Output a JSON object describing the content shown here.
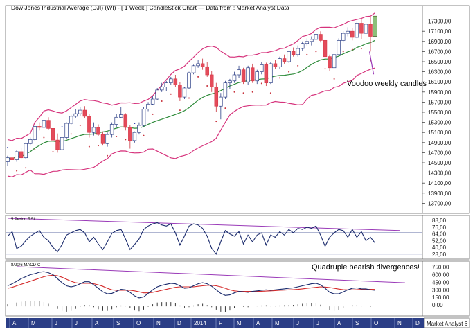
{
  "chart_data": [
    {
      "type": "candlestick",
      "title": "Dow Jones Industrial Average (DJI) (WI) - [ 1 Week ] CandleStick Chart — Data from : Market Analyst Data",
      "annotation": "Voodoo weekly candles",
      "ylim": [
        13500,
        17500
      ],
      "y_ticks": [
        "17300,00",
        "17100,00",
        "16900,00",
        "16700,00",
        "16500,00",
        "16300,00",
        "16100,00",
        "15900,00",
        "15700,00",
        "15500,00",
        "15300,00",
        "15100,00",
        "14900,00",
        "14700,00",
        "14500,00",
        "14300,00",
        "14100,00",
        "13900,00",
        "13700,00"
      ],
      "candles": [
        {
          "o": 14520,
          "h": 14640,
          "l": 14440,
          "c": 14600
        },
        {
          "o": 14600,
          "h": 14700,
          "l": 14500,
          "c": 14560
        },
        {
          "o": 14560,
          "h": 14760,
          "l": 14520,
          "c": 14720
        },
        {
          "o": 14720,
          "h": 14800,
          "l": 14560,
          "c": 14600
        },
        {
          "o": 14600,
          "h": 14900,
          "l": 14580,
          "c": 14880
        },
        {
          "o": 14880,
          "h": 15000,
          "l": 14840,
          "c": 14960
        },
        {
          "o": 14960,
          "h": 15260,
          "l": 14940,
          "c": 15220
        },
        {
          "o": 15220,
          "h": 15300,
          "l": 15140,
          "c": 15200
        },
        {
          "o": 15200,
          "h": 15380,
          "l": 15180,
          "c": 15340
        },
        {
          "o": 15340,
          "h": 15400,
          "l": 15160,
          "c": 15180
        },
        {
          "o": 15180,
          "h": 15250,
          "l": 14900,
          "c": 14950
        },
        {
          "o": 14950,
          "h": 15080,
          "l": 14700,
          "c": 14760
        },
        {
          "o": 14760,
          "h": 15050,
          "l": 14720,
          "c": 15000
        },
        {
          "o": 15000,
          "h": 15300,
          "l": 14980,
          "c": 15280
        },
        {
          "o": 15280,
          "h": 15450,
          "l": 15250,
          "c": 15420
        },
        {
          "o": 15420,
          "h": 15560,
          "l": 15380,
          "c": 15470
        },
        {
          "o": 15470,
          "h": 15600,
          "l": 15420,
          "c": 15540
        },
        {
          "o": 15540,
          "h": 15620,
          "l": 15380,
          "c": 15420
        },
        {
          "o": 15420,
          "h": 15460,
          "l": 15000,
          "c": 15100
        },
        {
          "o": 15100,
          "h": 15300,
          "l": 15040,
          "c": 15200
        },
        {
          "o": 15200,
          "h": 15260,
          "l": 15020,
          "c": 15060
        },
        {
          "o": 15060,
          "h": 15120,
          "l": 14840,
          "c": 14880
        },
        {
          "o": 14880,
          "h": 15100,
          "l": 14820,
          "c": 15060
        },
        {
          "o": 15060,
          "h": 15300,
          "l": 15000,
          "c": 15260
        },
        {
          "o": 15260,
          "h": 15460,
          "l": 15200,
          "c": 15400
        },
        {
          "o": 15400,
          "h": 15600,
          "l": 15380,
          "c": 15450
        },
        {
          "o": 15450,
          "h": 15480,
          "l": 15140,
          "c": 15200
        },
        {
          "o": 15200,
          "h": 15240,
          "l": 14780,
          "c": 14940
        },
        {
          "o": 14940,
          "h": 15120,
          "l": 14900,
          "c": 15100
        },
        {
          "o": 15100,
          "h": 15300,
          "l": 15060,
          "c": 15240
        },
        {
          "o": 15240,
          "h": 15600,
          "l": 15220,
          "c": 15560
        },
        {
          "o": 15560,
          "h": 15700,
          "l": 15520,
          "c": 15660
        },
        {
          "o": 15660,
          "h": 15820,
          "l": 15640,
          "c": 15760
        },
        {
          "o": 15760,
          "h": 15980,
          "l": 15740,
          "c": 15940
        },
        {
          "o": 15940,
          "h": 16080,
          "l": 15900,
          "c": 16000
        },
        {
          "o": 16000,
          "h": 16120,
          "l": 15920,
          "c": 16080
        },
        {
          "o": 16080,
          "h": 16200,
          "l": 16040,
          "c": 16160
        },
        {
          "o": 16160,
          "h": 16240,
          "l": 16000,
          "c": 16040
        },
        {
          "o": 16040,
          "h": 16100,
          "l": 15720,
          "c": 15800
        },
        {
          "o": 15800,
          "h": 16000,
          "l": 15760,
          "c": 15980
        },
        {
          "o": 15980,
          "h": 16300,
          "l": 15960,
          "c": 16280
        },
        {
          "o": 16280,
          "h": 16440,
          "l": 16250,
          "c": 16420
        },
        {
          "o": 16420,
          "h": 16530,
          "l": 16380,
          "c": 16460
        },
        {
          "o": 16460,
          "h": 16560,
          "l": 16340,
          "c": 16400
        },
        {
          "o": 16400,
          "h": 16500,
          "l": 16200,
          "c": 16240
        },
        {
          "o": 16240,
          "h": 16320,
          "l": 15900,
          "c": 16000
        },
        {
          "o": 16000,
          "h": 16080,
          "l": 15500,
          "c": 15620
        },
        {
          "o": 15620,
          "h": 15880,
          "l": 15360,
          "c": 15800
        },
        {
          "o": 15800,
          "h": 16120,
          "l": 15760,
          "c": 16080
        },
        {
          "o": 16080,
          "h": 16160,
          "l": 15960,
          "c": 16120
        },
        {
          "o": 16120,
          "h": 16300,
          "l": 16080,
          "c": 16240
        },
        {
          "o": 16240,
          "h": 16420,
          "l": 16180,
          "c": 16340
        },
        {
          "o": 16340,
          "h": 16380,
          "l": 16060,
          "c": 16100
        },
        {
          "o": 16100,
          "h": 16420,
          "l": 16040,
          "c": 16380
        },
        {
          "o": 16380,
          "h": 16460,
          "l": 16080,
          "c": 16120
        },
        {
          "o": 16120,
          "h": 16340,
          "l": 16060,
          "c": 16300
        },
        {
          "o": 16300,
          "h": 16500,
          "l": 16250,
          "c": 16440
        },
        {
          "o": 16440,
          "h": 16480,
          "l": 16020,
          "c": 16080
        },
        {
          "o": 16080,
          "h": 16500,
          "l": 16060,
          "c": 16460
        },
        {
          "o": 16460,
          "h": 16540,
          "l": 16360,
          "c": 16400
        },
        {
          "o": 16400,
          "h": 16600,
          "l": 16360,
          "c": 16560
        },
        {
          "o": 16560,
          "h": 16640,
          "l": 16460,
          "c": 16500
        },
        {
          "o": 16500,
          "h": 16720,
          "l": 16480,
          "c": 16700
        },
        {
          "o": 16700,
          "h": 16780,
          "l": 16600,
          "c": 16640
        },
        {
          "o": 16640,
          "h": 16820,
          "l": 16600,
          "c": 16760
        },
        {
          "o": 16760,
          "h": 16900,
          "l": 16720,
          "c": 16860
        },
        {
          "o": 16860,
          "h": 16960,
          "l": 16820,
          "c": 16900
        },
        {
          "o": 16900,
          "h": 17000,
          "l": 16820,
          "c": 16940
        },
        {
          "o": 16940,
          "h": 17080,
          "l": 16880,
          "c": 17040
        },
        {
          "o": 17040,
          "h": 17100,
          "l": 16880,
          "c": 16920
        },
        {
          "o": 16920,
          "h": 16980,
          "l": 16540,
          "c": 16600
        },
        {
          "o": 16600,
          "h": 16640,
          "l": 16320,
          "c": 16380
        },
        {
          "o": 16380,
          "h": 16680,
          "l": 16340,
          "c": 16640
        },
        {
          "o": 16640,
          "h": 16960,
          "l": 16620,
          "c": 16920
        },
        {
          "o": 16920,
          "h": 17100,
          "l": 16880,
          "c": 17060
        },
        {
          "o": 17060,
          "h": 17180,
          "l": 17000,
          "c": 17100
        },
        {
          "o": 17100,
          "h": 17160,
          "l": 16920,
          "c": 16980
        },
        {
          "o": 16980,
          "h": 17300,
          "l": 16960,
          "c": 17260
        },
        {
          "o": 17260,
          "h": 17350,
          "l": 16940,
          "c": 17060
        },
        {
          "o": 17060,
          "h": 17300,
          "l": 16700,
          "c": 17240
        },
        {
          "o": 17240,
          "h": 17380,
          "l": 16700,
          "c": 17000
        },
        {
          "o": 17000,
          "h": 17420,
          "l": 16200,
          "c": 17400
        }
      ],
      "months": [
        "A",
        "M",
        "J",
        "J",
        "A",
        "S",
        "O",
        "N",
        "D",
        "2014",
        "F",
        "M",
        "A",
        "M",
        "J",
        "J",
        "A",
        "S",
        "O",
        "N",
        "D"
      ],
      "x_label": "Market Analyst 6"
    },
    {
      "type": "line",
      "title": "5 Period RSI",
      "ylim": [
        20,
        95
      ],
      "y_ticks": [
        "88,00",
        "76,00",
        "64,00",
        "52,00",
        "40,00",
        "28,00"
      ],
      "levels": [
        66,
        28
      ],
      "values": [
        60,
        68,
        38,
        42,
        52,
        60,
        65,
        70,
        58,
        52,
        40,
        32,
        45,
        62,
        66,
        70,
        72,
        66,
        50,
        58,
        46,
        36,
        50,
        65,
        70,
        72,
        55,
        36,
        45,
        55,
        72,
        78,
        82,
        84,
        80,
        78,
        82,
        66,
        44,
        60,
        78,
        82,
        80,
        74,
        60,
        38,
        28,
        50,
        70,
        64,
        60,
        68,
        46,
        62,
        50,
        62,
        66,
        44,
        62,
        58,
        68,
        62,
        72,
        66,
        74,
        72,
        76,
        74,
        78,
        62,
        42,
        58,
        66,
        72,
        70,
        58,
        72,
        58,
        68,
        52,
        58,
        48
      ]
    },
    {
      "type": "line",
      "title": "8/20/6 MACD-C",
      "annotation": "Quadruple bearish divergences!",
      "ylim": [
        -150,
        800
      ],
      "y_ticks": [
        "750,00",
        "600,00",
        "450,00",
        "300,00",
        "150,00",
        "0,00"
      ],
      "macd": [
        380,
        420,
        470,
        520,
        560,
        600,
        620,
        650,
        660,
        640,
        600,
        520,
        440,
        380,
        360,
        380,
        420,
        460,
        460,
        400,
        330,
        260,
        220,
        230,
        270,
        310,
        300,
        250,
        180,
        140,
        160,
        230,
        300,
        360,
        390,
        410,
        430,
        420,
        380,
        330,
        340,
        380,
        420,
        440,
        420,
        370,
        300,
        230,
        190,
        200,
        240,
        270,
        260,
        250,
        270,
        280,
        290,
        300,
        290,
        300,
        310,
        320,
        330,
        340,
        360,
        380,
        400,
        420,
        430,
        400,
        330,
        250,
        220,
        220,
        260,
        300,
        330,
        340,
        320,
        320,
        300,
        290
      ],
      "signal": [
        330,
        350,
        380,
        410,
        440,
        470,
        500,
        530,
        560,
        580,
        590,
        580,
        550,
        510,
        470,
        440,
        430,
        430,
        430,
        420,
        400,
        370,
        330,
        300,
        290,
        290,
        290,
        290,
        280,
        260,
        240,
        240,
        250,
        270,
        290,
        310,
        330,
        350,
        360,
        360,
        360,
        360,
        370,
        380,
        390,
        390,
        380,
        360,
        330,
        300,
        280,
        270,
        270,
        270,
        270,
        270,
        270,
        275,
        280,
        285,
        290,
        295,
        300,
        305,
        310,
        320,
        330,
        340,
        350,
        360,
        355,
        345,
        330,
        315,
        305,
        300,
        300,
        305,
        310,
        310,
        310,
        308
      ],
      "histogram": [
        50,
        70,
        90,
        110,
        120,
        130,
        120,
        120,
        100,
        60,
        10,
        -60,
        -110,
        -130,
        -110,
        -60,
        -10,
        30,
        30,
        -20,
        -70,
        -110,
        -110,
        -70,
        -20,
        20,
        10,
        -40,
        -100,
        -120,
        -80,
        -10,
        50,
        90,
        100,
        100,
        100,
        70,
        20,
        -30,
        -20,
        20,
        50,
        60,
        30,
        -20,
        -80,
        -130,
        -140,
        -100,
        -40,
        0,
        -10,
        -20,
        0,
        10,
        20,
        25,
        10,
        15,
        20,
        25,
        30,
        35,
        50,
        60,
        70,
        80,
        80,
        40,
        -25,
        -95,
        -110,
        -95,
        -45,
        0,
        30,
        35,
        10,
        10,
        -10,
        -18
      ]
    }
  ]
}
